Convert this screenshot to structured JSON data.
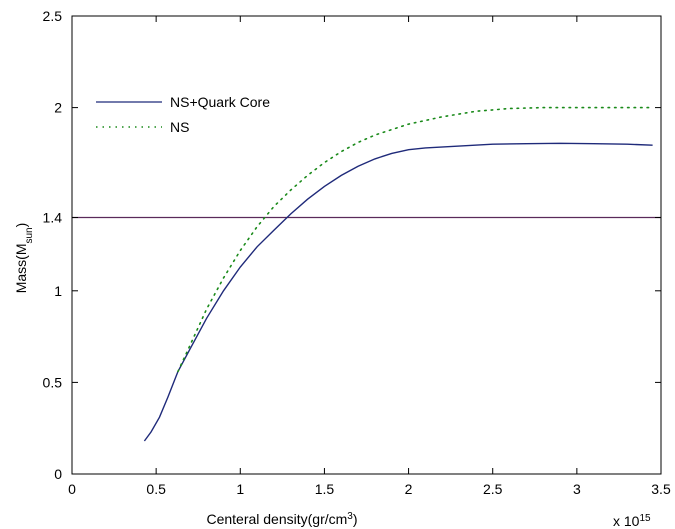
{
  "chart_data": {
    "type": "line",
    "title": "",
    "xlabel": "Centeral density(gr/cm",
    "xlabel_sup": "3",
    "xlabel_close": ")",
    "x_multiplier_prefix": "x 10",
    "x_multiplier_exp": "15",
    "ylabel": "Mass(M",
    "ylabel_sub": "sun",
    "ylabel_close": ")",
    "xlim": [
      0,
      3.5
    ],
    "ylim": [
      0,
      2.5
    ],
    "x_ticks": [
      0,
      0.5,
      1,
      1.5,
      2,
      2.5,
      3,
      3.5
    ],
    "x_tick_labels": [
      "0",
      "0.5",
      "1",
      "1.5",
      "2",
      "2.5",
      "3",
      "3.5"
    ],
    "y_ticks": [
      0,
      0.5,
      1,
      1.4,
      2,
      2.5
    ],
    "y_tick_labels": [
      "0",
      "0.5",
      "1",
      "1.4",
      "2",
      "2.5"
    ],
    "grid": false,
    "legend_position": "upper-left",
    "series": [
      {
        "name": "NS+Quark Core",
        "color": "#1f2a7a",
        "style": "solid",
        "x": [
          0.43,
          0.47,
          0.52,
          0.57,
          0.63,
          0.7,
          0.8,
          0.9,
          1.0,
          1.1,
          1.2,
          1.3,
          1.4,
          1.5,
          1.6,
          1.7,
          1.8,
          1.9,
          2.0,
          2.1,
          2.3,
          2.5,
          2.7,
          2.9,
          3.1,
          3.3,
          3.45
        ],
        "y": [
          0.18,
          0.23,
          0.31,
          0.42,
          0.56,
          0.68,
          0.85,
          1.0,
          1.13,
          1.24,
          1.33,
          1.42,
          1.5,
          1.57,
          1.63,
          1.68,
          1.72,
          1.75,
          1.77,
          1.78,
          1.79,
          1.8,
          1.803,
          1.805,
          1.803,
          1.8,
          1.795
        ]
      },
      {
        "name": "NS",
        "color": "#1a8a1a",
        "style": "dotted",
        "x": [
          0.63,
          0.7,
          0.8,
          0.9,
          1.0,
          1.1,
          1.2,
          1.3,
          1.4,
          1.5,
          1.6,
          1.7,
          1.8,
          1.9,
          2.0,
          2.2,
          2.4,
          2.6,
          2.8,
          3.0,
          3.2,
          3.45
        ],
        "y": [
          0.56,
          0.7,
          0.9,
          1.07,
          1.22,
          1.35,
          1.46,
          1.55,
          1.63,
          1.7,
          1.76,
          1.81,
          1.85,
          1.88,
          1.91,
          1.95,
          1.98,
          1.995,
          2.0,
          2.0,
          2.0,
          2.0
        ]
      }
    ],
    "reference_lines": [
      {
        "y": 1.4,
        "color": "#5a2a5a"
      }
    ]
  }
}
